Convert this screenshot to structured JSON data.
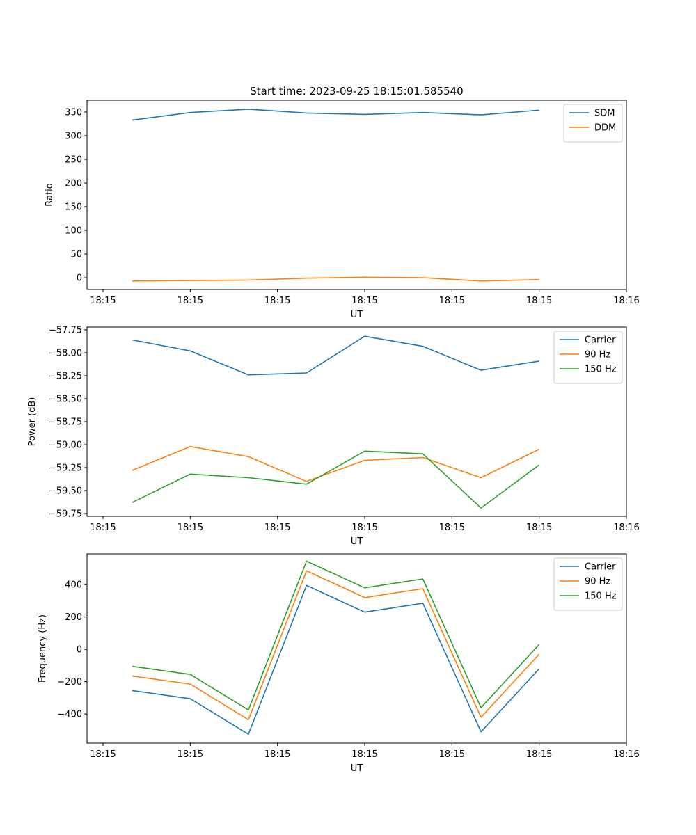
{
  "figure_title": "Start time: 2023-09-25 18:15:01.585540",
  "colors": {
    "blue": "#1f77b4",
    "orange": "#ff7f0e",
    "green": "#2ca02c"
  },
  "chart_data": [
    {
      "type": "line",
      "title": "Start time: 2023-09-25 18:15:01.585540",
      "xlabel": "UT",
      "ylabel": "Ratio",
      "x": [
        1,
        2,
        3,
        4,
        5,
        6,
        7,
        8
      ],
      "xlim": [
        0.225,
        9.5
      ],
      "x_ticks": [
        0.5,
        2,
        3.5,
        5,
        6.5,
        8,
        9.5
      ],
      "x_tick_labels": [
        "18:15",
        "18:15",
        "18:15",
        "18:15",
        "18:15",
        "18:15",
        "18:16"
      ],
      "ylim": [
        -25,
        375
      ],
      "y_ticks": [
        0,
        50,
        100,
        150,
        200,
        250,
        300,
        350
      ],
      "y_tick_labels": [
        "0",
        "50",
        "100",
        "150",
        "200",
        "250",
        "300",
        "350"
      ],
      "legend": "top-right",
      "series": [
        {
          "name": "SDM",
          "color": "#1f77b4",
          "values": [
            333,
            349,
            356,
            348,
            345,
            349,
            344,
            354
          ]
        },
        {
          "name": "DDM",
          "color": "#ff7f0e",
          "values": [
            -7,
            -6,
            -5,
            -1,
            1,
            0,
            -7,
            -4
          ]
        }
      ]
    },
    {
      "type": "line",
      "title": "",
      "xlabel": "UT",
      "ylabel": "Power (dB)",
      "x": [
        1,
        2,
        3,
        4,
        5,
        6,
        7,
        8
      ],
      "xlim": [
        0.225,
        9.5
      ],
      "x_ticks": [
        0.5,
        2,
        3.5,
        5,
        6.5,
        8,
        9.5
      ],
      "x_tick_labels": [
        "18:15",
        "18:15",
        "18:15",
        "18:15",
        "18:15",
        "18:15",
        "18:16"
      ],
      "ylim": [
        -59.78,
        -57.72
      ],
      "y_ticks": [
        -59.75,
        -59.5,
        -59.25,
        -59.0,
        -58.75,
        -58.5,
        -58.25,
        -58.0,
        -57.75
      ],
      "y_tick_labels": [
        "−59.75",
        "−59.50",
        "−59.25",
        "−59.00",
        "−58.75",
        "−58.50",
        "−58.25",
        "−58.00",
        "−57.75"
      ],
      "legend": "top-right",
      "series": [
        {
          "name": "Carrier",
          "color": "#1f77b4",
          "values": [
            -57.86,
            -57.98,
            -58.24,
            -58.22,
            -57.82,
            -57.93,
            -58.19,
            -58.09
          ]
        },
        {
          "name": "90 Hz",
          "color": "#ff7f0e",
          "values": [
            -59.28,
            -59.02,
            -59.13,
            -59.4,
            -59.17,
            -59.14,
            -59.36,
            -59.05
          ]
        },
        {
          "name": "150 Hz",
          "color": "#2ca02c",
          "values": [
            -59.63,
            -59.32,
            -59.36,
            -59.43,
            -59.07,
            -59.1,
            -59.69,
            -59.22
          ]
        }
      ]
    },
    {
      "type": "line",
      "title": "",
      "xlabel": "UT",
      "ylabel": "Frequency (Hz)",
      "x": [
        1,
        2,
        3,
        4,
        5,
        6,
        7,
        8
      ],
      "xlim": [
        0.225,
        9.5
      ],
      "x_ticks": [
        0.5,
        2,
        3.5,
        5,
        6.5,
        8,
        9.5
      ],
      "x_tick_labels": [
        "18:15",
        "18:15",
        "18:15",
        "18:15",
        "18:15",
        "18:15",
        "18:16"
      ],
      "ylim": [
        -580,
        590
      ],
      "y_ticks": [
        -400,
        -200,
        0,
        200,
        400
      ],
      "y_tick_labels": [
        "−400",
        "−200",
        "0",
        "200",
        "400"
      ],
      "legend": "top-right",
      "series": [
        {
          "name": "Carrier",
          "color": "#1f77b4",
          "values": [
            -255,
            -305,
            -525,
            395,
            230,
            285,
            -510,
            -120
          ]
        },
        {
          "name": "90 Hz",
          "color": "#ff7f0e",
          "values": [
            -165,
            -215,
            -435,
            485,
            320,
            375,
            -420,
            -30
          ]
        },
        {
          "name": "150 Hz",
          "color": "#2ca02c",
          "values": [
            -105,
            -155,
            -375,
            545,
            380,
            435,
            -360,
            30
          ]
        }
      ]
    }
  ]
}
